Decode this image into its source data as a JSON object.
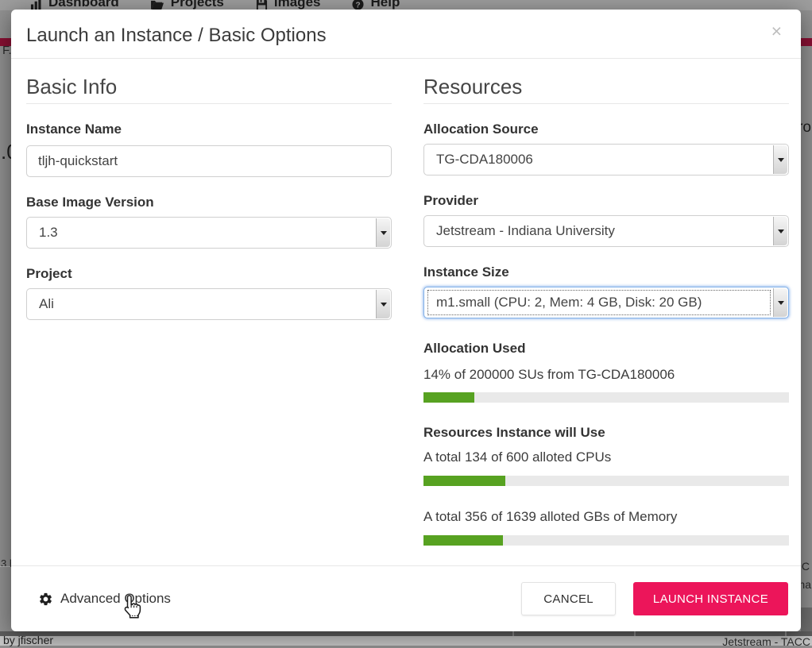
{
  "colors": {
    "accent-pink": "#ec155a",
    "progress-green": "#57a221",
    "stripe-red": "#8a1033"
  },
  "background": {
    "nav": {
      "items": [
        {
          "label": "Dashboard",
          "icon": "bar-chart-icon"
        },
        {
          "label": "Projects",
          "icon": "folder-icon"
        },
        {
          "label": "Images",
          "icon": "floppy-disk-icon"
        },
        {
          "label": "Help",
          "icon": "help-circle-icon"
        }
      ]
    },
    "fragments": {
      "left_top": "F.",
      "left_heading": ".0",
      "left_bottom": "3 h",
      "right_heading": "ro",
      "right_mid_1": "C",
      "right_mid_2": "na",
      "bottom_left": "by jfischer",
      "bottom_right": "Jetstream - TACC"
    }
  },
  "modal": {
    "title": "Launch an Instance / Basic Options",
    "close_glyph": "×",
    "basic_info": {
      "heading": "Basic Info",
      "instance_name": {
        "label": "Instance Name",
        "value": "tljh-quickstart"
      },
      "base_image_version": {
        "label": "Base Image Version",
        "value": "1.3"
      },
      "project": {
        "label": "Project",
        "value": "Ali"
      }
    },
    "resources": {
      "heading": "Resources",
      "allocation_source": {
        "label": "Allocation Source",
        "value": "TG-CDA180006"
      },
      "provider": {
        "label": "Provider",
        "value": "Jetstream - Indiana University"
      },
      "instance_size": {
        "label": "Instance Size",
        "value": "m1.small (CPU: 2, Mem: 4 GB, Disk: 20 GB)"
      },
      "allocation_used": {
        "heading": "Allocation Used",
        "text": "14% of 200000 SUs from TG-CDA180006",
        "percent": 14
      },
      "usage": {
        "heading": "Resources Instance will Use",
        "cpu": {
          "text": "A total 134 of 600 alloted CPUs",
          "percent": 22.3
        },
        "memory": {
          "text": "A total 356 of 1639 alloted GBs of Memory",
          "percent": 21.7
        }
      }
    },
    "footer": {
      "advanced_options_label": "Advanced Options",
      "cancel_label": "CANCEL",
      "launch_label": "LAUNCH INSTANCE"
    }
  }
}
